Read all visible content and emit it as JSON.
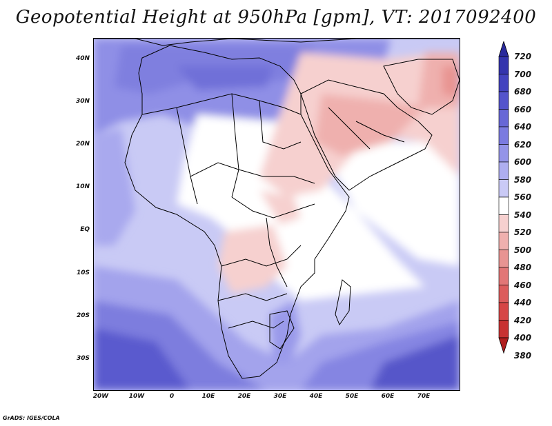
{
  "title": "Geopotential Height at 950hPa [gpm], VT: 2017092400",
  "credit": "GrADS: IGES/COLA",
  "map": {
    "variable": "Geopotential Height",
    "level": "950hPa",
    "units": "gpm",
    "valid_time": "2017092400",
    "lat_labels": [
      "40N",
      "30N",
      "20N",
      "10N",
      "EQ",
      "10S",
      "20S",
      "30S"
    ],
    "lon_labels": [
      "20W",
      "10W",
      "0",
      "10E",
      "20E",
      "30E",
      "40E",
      "50E",
      "60E",
      "70E"
    ]
  },
  "colorbar": {
    "labels": [
      "720",
      "700",
      "680",
      "660",
      "640",
      "620",
      "600",
      "580",
      "560",
      "540",
      "520",
      "500",
      "480",
      "460",
      "440",
      "420",
      "400",
      "380"
    ],
    "colors": [
      "#2a2a9c",
      "#3434ad",
      "#4343bf",
      "#5454cc",
      "#6767d6",
      "#7b7be0",
      "#9494e8",
      "#aeaef0",
      "#cacaf6",
      "#ffffff",
      "#f6d0cf",
      "#efb0ae",
      "#e89492",
      "#e27676",
      "#dc5c5c",
      "#d64646",
      "#c83232",
      "#b01e1e"
    ]
  }
}
